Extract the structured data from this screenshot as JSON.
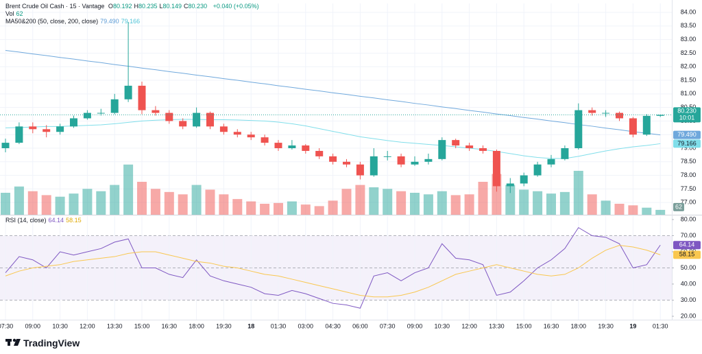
{
  "chart_data": [
    {
      "type": "candlestick",
      "title": "Brent Crude Oil Cash · 15 · Vantage",
      "fields": [
        {
          "key": "O",
          "value": "80.192"
        },
        {
          "key": "H",
          "value": "80.235"
        },
        {
          "key": "L",
          "value": "80.149"
        },
        {
          "key": "C",
          "value": "80.230"
        }
      ],
      "change": "+0.040 (+0.05%)",
      "vol_label": "Vol",
      "ma_label": "MA50&200 (50, close, 200, close)",
      "countdown": "10:01",
      "categories": [
        "07:30",
        null,
        "09:00",
        null,
        "10:30",
        null,
        "12:00",
        null,
        "13:30",
        null,
        "15:00",
        null,
        "16:30",
        null,
        "18:00",
        null,
        "19:30",
        null,
        "18",
        null,
        "01:30",
        null,
        "03:00",
        null,
        "04:30",
        null,
        "06:00",
        null,
        "07:30",
        null,
        "09:00",
        null,
        "10:30",
        null,
        "12:00",
        null,
        "13:30",
        null,
        "15:00",
        null,
        "16:30",
        null,
        "18:00",
        null,
        "19:30",
        null,
        "19",
        null,
        "01:30"
      ],
      "open": [
        79.0,
        79.2,
        79.8,
        79.7,
        79.6,
        79.8,
        80.1,
        80.3,
        80.3,
        80.8,
        81.3,
        80.4,
        80.3,
        80.0,
        79.8,
        80.3,
        79.8,
        79.6,
        79.5,
        79.4,
        79.2,
        79.0,
        79.1,
        78.9,
        78.7,
        78.5,
        78.4,
        78.0,
        78.7,
        78.7,
        78.4,
        78.5,
        78.6,
        79.3,
        79.1,
        79.0,
        78.9,
        77.6,
        77.7,
        78.0,
        78.4,
        78.6,
        79.0,
        80.4,
        80.3,
        80.3,
        80.1,
        79.5,
        80.192
      ],
      "high": [
        79.35,
        79.95,
        79.95,
        79.85,
        79.9,
        80.2,
        80.4,
        80.45,
        81.0,
        83.65,
        81.45,
        80.55,
        80.4,
        80.1,
        80.5,
        80.35,
        79.9,
        79.7,
        79.6,
        79.5,
        79.3,
        79.3,
        79.15,
        79.0,
        78.8,
        78.6,
        78.5,
        79.0,
        78.9,
        78.8,
        78.7,
        78.8,
        79.4,
        79.35,
        79.2,
        79.1,
        78.95,
        77.9,
        78.1,
        78.5,
        78.75,
        79.1,
        80.65,
        80.5,
        80.4,
        80.35,
        80.15,
        80.25,
        80.235
      ],
      "low": [
        78.85,
        79.15,
        79.55,
        79.4,
        79.5,
        79.75,
        80.05,
        80.2,
        80.25,
        80.7,
        80.25,
        80.2,
        79.9,
        79.7,
        79.75,
        79.7,
        79.5,
        79.4,
        79.3,
        79.1,
        78.9,
        78.95,
        78.8,
        78.6,
        78.4,
        78.3,
        77.85,
        77.95,
        78.55,
        78.3,
        78.35,
        78.4,
        78.55,
        79.0,
        78.9,
        78.8,
        77.4,
        77.35,
        77.6,
        77.95,
        78.3,
        78.55,
        78.95,
        80.2,
        80.15,
        80.0,
        79.4,
        79.45,
        80.149
      ],
      "close": [
        79.2,
        79.8,
        79.7,
        79.6,
        79.8,
        80.1,
        80.3,
        80.3,
        80.8,
        81.3,
        80.4,
        80.3,
        80.0,
        79.8,
        80.3,
        79.8,
        79.6,
        79.5,
        79.4,
        79.2,
        79.0,
        79.1,
        78.9,
        78.7,
        78.5,
        78.4,
        78.0,
        78.7,
        78.7,
        78.4,
        78.5,
        78.6,
        79.3,
        79.1,
        79.0,
        78.9,
        77.6,
        77.7,
        78.0,
        78.4,
        78.6,
        79.0,
        80.4,
        80.3,
        80.3,
        80.1,
        79.5,
        80.19,
        80.23
      ],
      "volume": [
        280,
        360,
        300,
        250,
        230,
        270,
        330,
        300,
        380,
        640,
        420,
        330,
        290,
        260,
        380,
        320,
        260,
        200,
        170,
        140,
        150,
        170,
        130,
        110,
        180,
        330,
        380,
        350,
        330,
        300,
        280,
        260,
        300,
        250,
        260,
        420,
        520,
        380,
        320,
        300,
        270,
        290,
        560,
        260,
        180,
        140,
        120,
        90,
        62
      ],
      "up_color": "#26a69a",
      "down_color": "#ef5350",
      "ylim": [
        76.55,
        84.33
      ],
      "volume_lim": [
        0,
        700
      ],
      "yticks": [
        {
          "value": 84,
          "label": "84.00"
        },
        {
          "value": 83.5,
          "label": "83.50"
        },
        {
          "value": 83,
          "label": "83.00"
        },
        {
          "value": 82.5,
          "label": "82.50"
        },
        {
          "value": 82,
          "label": "82.00"
        },
        {
          "value": 81.5,
          "label": "81.50"
        },
        {
          "value": 81,
          "label": "81.00"
        },
        {
          "value": 80.5,
          "label": "80.50"
        },
        {
          "value": 80,
          "label": "80.00"
        },
        {
          "value": 79.5,
          "label": "79.50"
        },
        {
          "value": 79,
          "label": "79.00"
        },
        {
          "value": 78.5,
          "label": "78.50"
        },
        {
          "value": 78,
          "label": "78.00"
        },
        {
          "value": 77.5,
          "label": "77.50"
        },
        {
          "value": 77,
          "label": "77.00"
        }
      ],
      "grid": true,
      "series": [
        {
          "color": "#6fa8dc",
          "last_label": "79.490",
          "values": [
            82.6,
            82.54,
            82.47,
            82.41,
            82.34,
            82.28,
            82.21,
            82.15,
            82.08,
            82.02,
            81.95,
            81.89,
            81.82,
            81.76,
            81.69,
            81.63,
            81.56,
            81.5,
            81.43,
            81.37,
            81.3,
            81.24,
            81.17,
            81.11,
            81.04,
            80.98,
            80.91,
            80.85,
            80.78,
            80.72,
            80.65,
            80.59,
            80.52,
            80.46,
            80.39,
            80.33,
            80.26,
            80.2,
            80.13,
            80.07,
            80.0,
            79.94,
            79.87,
            79.81,
            79.74,
            79.68,
            79.61,
            79.55,
            79.49
          ]
        },
        {
          "color": "#80deea",
          "last_label": "79.166",
          "values": [
            79.75,
            79.76,
            79.78,
            79.8,
            79.8,
            79.82,
            79.84,
            79.86,
            79.9,
            79.95,
            80.0,
            80.03,
            80.05,
            80.06,
            80.06,
            80.05,
            80.05,
            80.04,
            80.02,
            80.0,
            79.96,
            79.9,
            79.82,
            79.72,
            79.62,
            79.52,
            79.42,
            79.35,
            79.28,
            79.22,
            79.18,
            79.14,
            79.1,
            79.05,
            79.0,
            78.95,
            78.88,
            78.8,
            78.72,
            78.66,
            78.62,
            78.62,
            78.7,
            78.8,
            78.9,
            78.98,
            79.05,
            79.1,
            79.166
          ]
        }
      ]
    },
    {
      "type": "line",
      "title": "RSI (14, close)",
      "ylim": [
        17.87,
        82.13
      ],
      "yticks": [
        {
          "value": 80,
          "label": "80.00"
        },
        {
          "value": 70,
          "label": "70.00"
        },
        {
          "value": 60,
          "label": "60.00"
        },
        {
          "value": 50,
          "label": "50.00"
        },
        {
          "value": 40,
          "label": "40.00"
        },
        {
          "value": 30,
          "label": "30.00"
        },
        {
          "value": 20,
          "label": "20.00"
        }
      ],
      "levels": [
        70,
        50,
        30
      ],
      "band": [
        30,
        70
      ],
      "band_color": "#ede7f6",
      "series": [
        {
          "color": "#7e57c2",
          "values": [
            47,
            57,
            55,
            50,
            60,
            58,
            60,
            62,
            66,
            68,
            50,
            50,
            46,
            44,
            55,
            45,
            42,
            40,
            38,
            34,
            33,
            36,
            34,
            31,
            28,
            27,
            25,
            45,
            47,
            42,
            47,
            50,
            65,
            56,
            55,
            52,
            33,
            35,
            42,
            50,
            55,
            62,
            75,
            70,
            69,
            65,
            50,
            52,
            64.14
          ]
        },
        {
          "color": "#f9c74f",
          "values": [
            45,
            48,
            50,
            51,
            52,
            54,
            55,
            56,
            57,
            59,
            60,
            60,
            58,
            56,
            54,
            53,
            51,
            50,
            48,
            46,
            45,
            43,
            41,
            39,
            37,
            35,
            33,
            32,
            32,
            33,
            35,
            38,
            42,
            46,
            48,
            50,
            52,
            50,
            48,
            46,
            45,
            46,
            50,
            56,
            61,
            64,
            63,
            61,
            58.15
          ]
        }
      ]
    }
  ],
  "brand": "TradingView"
}
